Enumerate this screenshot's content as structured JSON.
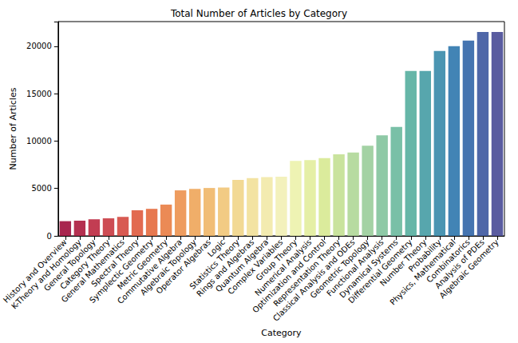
{
  "chart_data": {
    "type": "bar",
    "title": "Total Number of Articles by Category",
    "x_label": "Category",
    "y_label": "Number of Articles",
    "categories": [
      "History and Overview",
      "K-Theory and Homology",
      "General Topology",
      "Category Theory",
      "General Mathematics",
      "Spectral Theory",
      "Symplectic Geometry",
      "Metric Geometry",
      "Commutative Algebra",
      "Algebraic Topology",
      "Operator Algebras",
      "Logic",
      "Statistics Theory",
      "Rings and Algebras",
      "Quantum Algebra",
      "Complex Variables",
      "Group Theory",
      "Numerical Analysis",
      "Optimization and Control",
      "Representation Theory",
      "Classical Analysis and ODEs",
      "Geometric Topology",
      "Functional Analysis",
      "Dynamical Systems",
      "Differential Geometry",
      "Number Theory",
      "Probability",
      "Physics, Mathematical",
      "Combinatorics",
      "Analysis of PDEs",
      "Algebraic Geometry"
    ],
    "values": [
      1550,
      1600,
      1750,
      1850,
      2000,
      2700,
      2850,
      3300,
      4800,
      4950,
      5050,
      5100,
      5900,
      6100,
      6200,
      6250,
      7900,
      8000,
      8200,
      8600,
      8800,
      9500,
      10600,
      11500,
      17400,
      17400,
      19500,
      20000,
      20600,
      21500,
      21500
    ],
    "colors": [
      "#a8264f",
      "#b43050",
      "#c23d52",
      "#cd4c53",
      "#d85a52",
      "#e26a50",
      "#e7784f",
      "#eb8a55",
      "#ee9c5f",
      "#f0ae69",
      "#f1bd76",
      "#f2cb84",
      "#f2d994",
      "#f3e3a2",
      "#f3ebb0",
      "#f3f1bc",
      "#eef3b3",
      "#e5efa6",
      "#dbeb9c",
      "#c9e39d",
      "#b7dba1",
      "#a3d2a4",
      "#8ec9a6",
      "#79c0a7",
      "#66b6a8",
      "#57a6ad",
      "#4b95b2",
      "#4284b5",
      "#4574b0",
      "#4f67a8",
      "#5a5ca0"
    ],
    "ylim": [
      0,
      22600
    ],
    "yticks": [
      0,
      5000,
      10000,
      15000,
      20000
    ],
    "grid": false
  }
}
